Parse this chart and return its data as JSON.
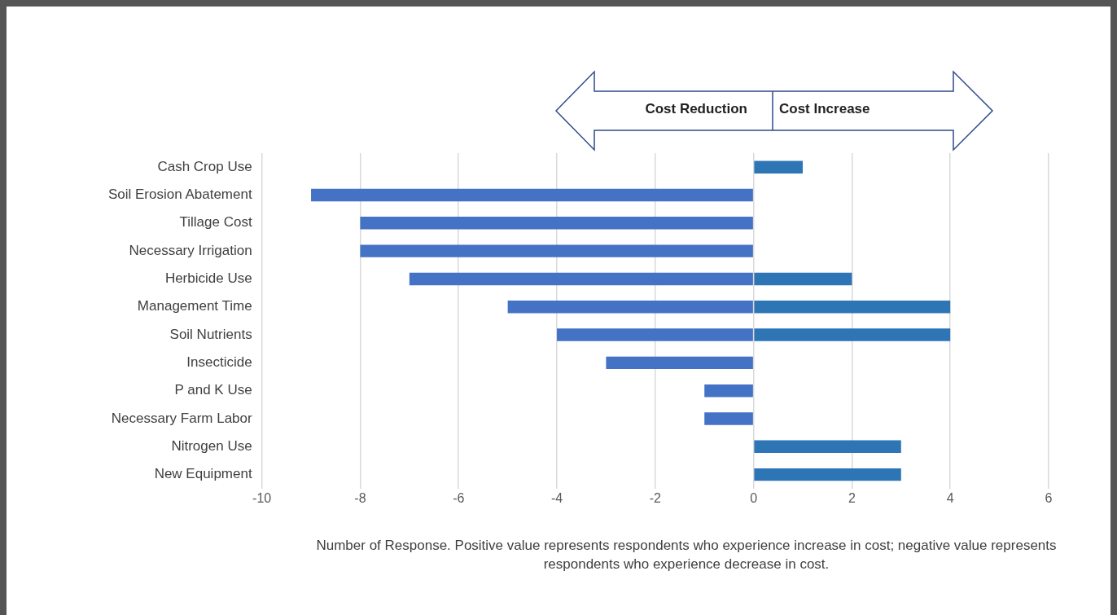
{
  "chart_data": {
    "type": "bar",
    "orientation": "horizontal",
    "stacked": true,
    "xlabel": "Number of Response.  Positive value represents respondents who experience increase in cost; negative value represents respondents who experience decrease in cost.",
    "categories": [
      "Cash Crop Use",
      "Soil Erosion Abatement",
      "Tillage Cost",
      "Necessary Irrigation",
      "Herbicide Use",
      "Management Time",
      "Soil Nutrients",
      "Insecticide",
      "P and K Use",
      "Necessary Farm Labor",
      "Nitrogen Use",
      "New Equipment"
    ],
    "series": [
      {
        "color": "#4472c4",
        "values": [
          null,
          -9,
          -8,
          -8,
          -7,
          -5,
          -4,
          -3,
          -1,
          -1,
          null,
          null
        ]
      },
      {
        "color": "#2e75b6",
        "values": [
          1,
          null,
          null,
          null,
          2,
          4,
          4,
          null,
          null,
          null,
          3,
          3
        ]
      }
    ],
    "xlim": [
      -10,
      6
    ],
    "xticks": [
      -10,
      -8,
      -6,
      -4,
      -2,
      0,
      2,
      4,
      6
    ],
    "grid": "x",
    "legend": false,
    "annotations": [
      "Cost Reduction",
      "Cost Increase"
    ]
  }
}
